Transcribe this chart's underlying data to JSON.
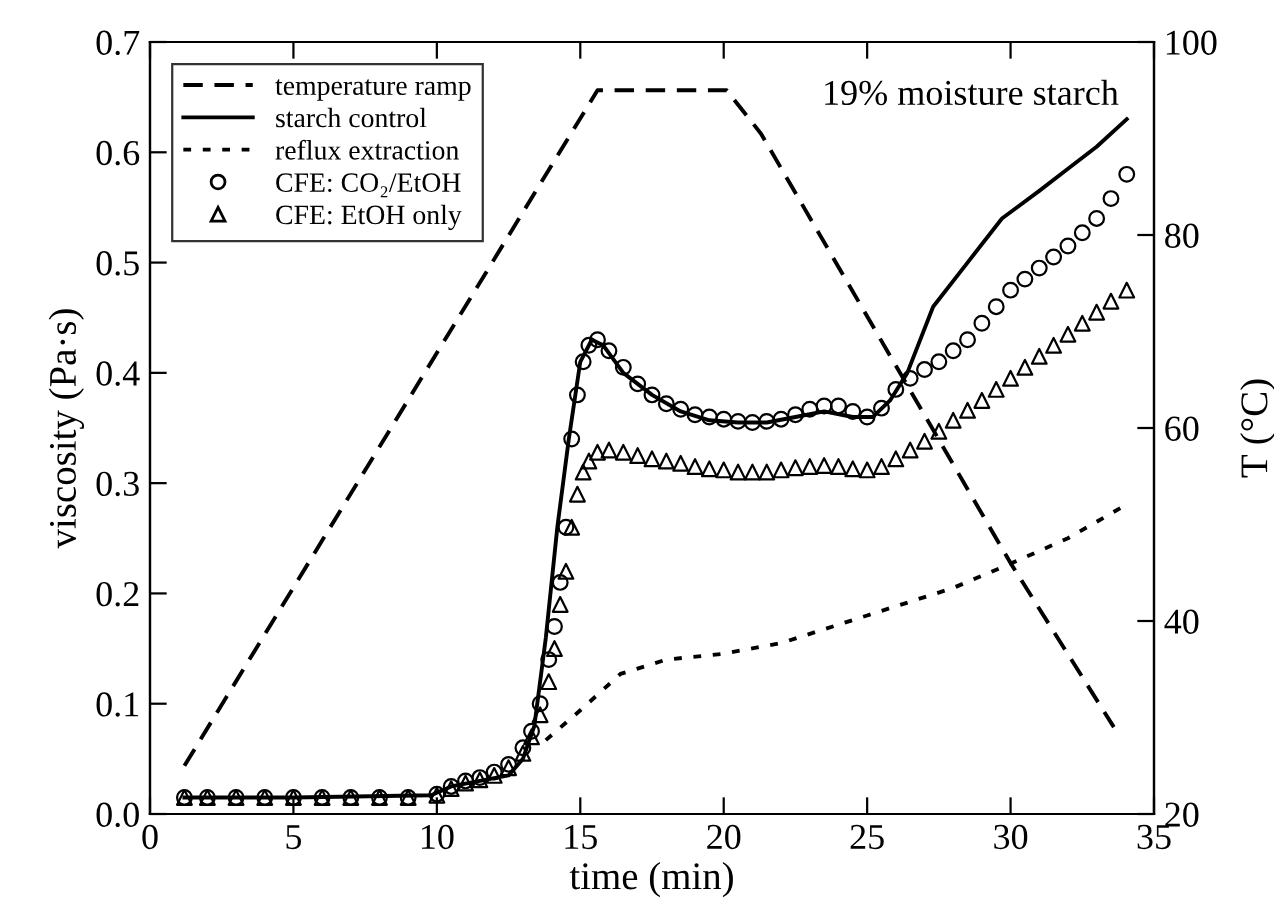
{
  "chart_data": {
    "type": "line",
    "xlabel": "time (min)",
    "ylabel": "viscosity (Pa·s)",
    "y2label": "T (°C)",
    "annotations": [
      "19% moisture starch"
    ],
    "xlim": [
      0,
      35
    ],
    "xticks": [
      0,
      5,
      10,
      15,
      20,
      25,
      30,
      35
    ],
    "ylim": [
      0,
      0.7
    ],
    "yticks": [
      {
        "value": 0,
        "label": "0.0"
      },
      0.1,
      0.2,
      0.3,
      0.4,
      0.5,
      0.6,
      0.7
    ],
    "y2lim": [
      20,
      100
    ],
    "y2ticks": [
      20,
      40,
      60,
      80,
      100
    ],
    "grid": false,
    "legend": "top left",
    "series": [
      {
        "name": "temperature ramp",
        "axis": "y2",
        "line_style": "dashed",
        "marker": "none",
        "color": "#000000",
        "x": [
          1.2,
          15.6,
          20.1,
          21.3,
          30.0,
          33.6
        ],
        "values": [
          25,
          95,
          95,
          90.5,
          46,
          29
        ]
      },
      {
        "name": "starch control",
        "line_style": "solid",
        "marker": "none",
        "color": "#000000",
        "x": [
          1.2,
          5,
          9.8,
          10.5,
          11.5,
          12.5,
          13.0,
          13.4,
          13.8,
          14.2,
          14.6,
          15.0,
          15.4,
          15.8,
          16.5,
          17.5,
          18.5,
          19.5,
          20.5,
          21.5,
          22.5,
          23.5,
          24.5,
          25.2,
          25.8,
          26.4,
          27.3,
          28.5,
          29.7,
          31,
          32,
          33,
          34.05
        ],
        "values": [
          0.015,
          0.015,
          0.017,
          0.025,
          0.03,
          0.035,
          0.05,
          0.08,
          0.16,
          0.26,
          0.34,
          0.41,
          0.43,
          0.425,
          0.4,
          0.38,
          0.365,
          0.357,
          0.355,
          0.355,
          0.36,
          0.365,
          0.36,
          0.36,
          0.375,
          0.4,
          0.46,
          0.5,
          0.54,
          0.565,
          0.585,
          0.605,
          0.63
        ]
      },
      {
        "name": "reflux extraction",
        "line_style": "dotted",
        "marker": "none",
        "color": "#000000",
        "x": [
          13.8,
          15.0,
          16.4,
          18,
          19.9,
          22,
          25.0,
          28,
          30.0,
          32,
          34.0
        ],
        "values": [
          0.067,
          0.094,
          0.127,
          0.14,
          0.145,
          0.155,
          0.18,
          0.205,
          0.227,
          0.25,
          0.28
        ]
      },
      {
        "name": "CFE: CO₂/EtOH",
        "type": "scatter",
        "marker": "circle",
        "color": "#000000",
        "x": [
          1.2,
          2,
          3,
          4,
          5,
          6,
          7,
          8,
          9,
          10,
          10.5,
          11,
          11.5,
          12,
          12.5,
          13,
          13.3,
          13.6,
          13.9,
          14.1,
          14.3,
          14.5,
          14.7,
          14.9,
          15.1,
          15.3,
          15.6,
          16,
          16.5,
          17,
          17.5,
          18,
          18.5,
          19,
          19.5,
          20,
          20.5,
          21,
          21.5,
          22,
          22.5,
          23,
          23.5,
          24,
          24.5,
          25,
          25.5,
          26,
          26.5,
          27,
          27.5,
          28,
          28.5,
          29,
          29.5,
          30,
          30.5,
          31,
          31.5,
          32,
          32.5,
          33,
          33.5,
          34.05
        ],
        "values": [
          0.015,
          0.015,
          0.015,
          0.015,
          0.015,
          0.015,
          0.015,
          0.015,
          0.015,
          0.018,
          0.025,
          0.03,
          0.033,
          0.038,
          0.045,
          0.06,
          0.075,
          0.1,
          0.14,
          0.17,
          0.21,
          0.26,
          0.34,
          0.38,
          0.41,
          0.425,
          0.43,
          0.42,
          0.405,
          0.39,
          0.38,
          0.372,
          0.367,
          0.362,
          0.36,
          0.358,
          0.356,
          0.355,
          0.356,
          0.358,
          0.362,
          0.367,
          0.37,
          0.37,
          0.365,
          0.36,
          0.368,
          0.385,
          0.395,
          0.403,
          0.41,
          0.42,
          0.43,
          0.445,
          0.46,
          0.475,
          0.485,
          0.495,
          0.505,
          0.515,
          0.527,
          0.54,
          0.558,
          0.58
        ]
      },
      {
        "name": "CFE: EtOH only",
        "type": "scatter",
        "marker": "triangle",
        "color": "#000000",
        "x": [
          1.2,
          2,
          3,
          4,
          5,
          6,
          7,
          8,
          9,
          10,
          10.5,
          11,
          11.5,
          12,
          12.5,
          13,
          13.3,
          13.6,
          13.9,
          14.1,
          14.3,
          14.5,
          14.7,
          14.9,
          15.1,
          15.3,
          15.6,
          16,
          16.5,
          17,
          17.5,
          18,
          18.5,
          19,
          19.5,
          20,
          20.5,
          21,
          21.5,
          22,
          22.5,
          23,
          23.5,
          24,
          24.5,
          25,
          25.5,
          26,
          26.5,
          27,
          27.5,
          28,
          28.5,
          29,
          29.5,
          30,
          30.5,
          31,
          31.5,
          32,
          32.5,
          33,
          33.5,
          34.05
        ],
        "values": [
          0.015,
          0.015,
          0.015,
          0.015,
          0.015,
          0.015,
          0.015,
          0.015,
          0.015,
          0.017,
          0.023,
          0.028,
          0.031,
          0.035,
          0.042,
          0.055,
          0.07,
          0.09,
          0.12,
          0.15,
          0.19,
          0.22,
          0.26,
          0.29,
          0.31,
          0.32,
          0.328,
          0.33,
          0.328,
          0.325,
          0.322,
          0.32,
          0.318,
          0.315,
          0.313,
          0.312,
          0.31,
          0.31,
          0.31,
          0.312,
          0.314,
          0.315,
          0.316,
          0.315,
          0.313,
          0.312,
          0.315,
          0.322,
          0.33,
          0.338,
          0.347,
          0.357,
          0.366,
          0.375,
          0.385,
          0.395,
          0.405,
          0.415,
          0.425,
          0.435,
          0.445,
          0.455,
          0.465,
          0.475
        ]
      }
    ]
  }
}
